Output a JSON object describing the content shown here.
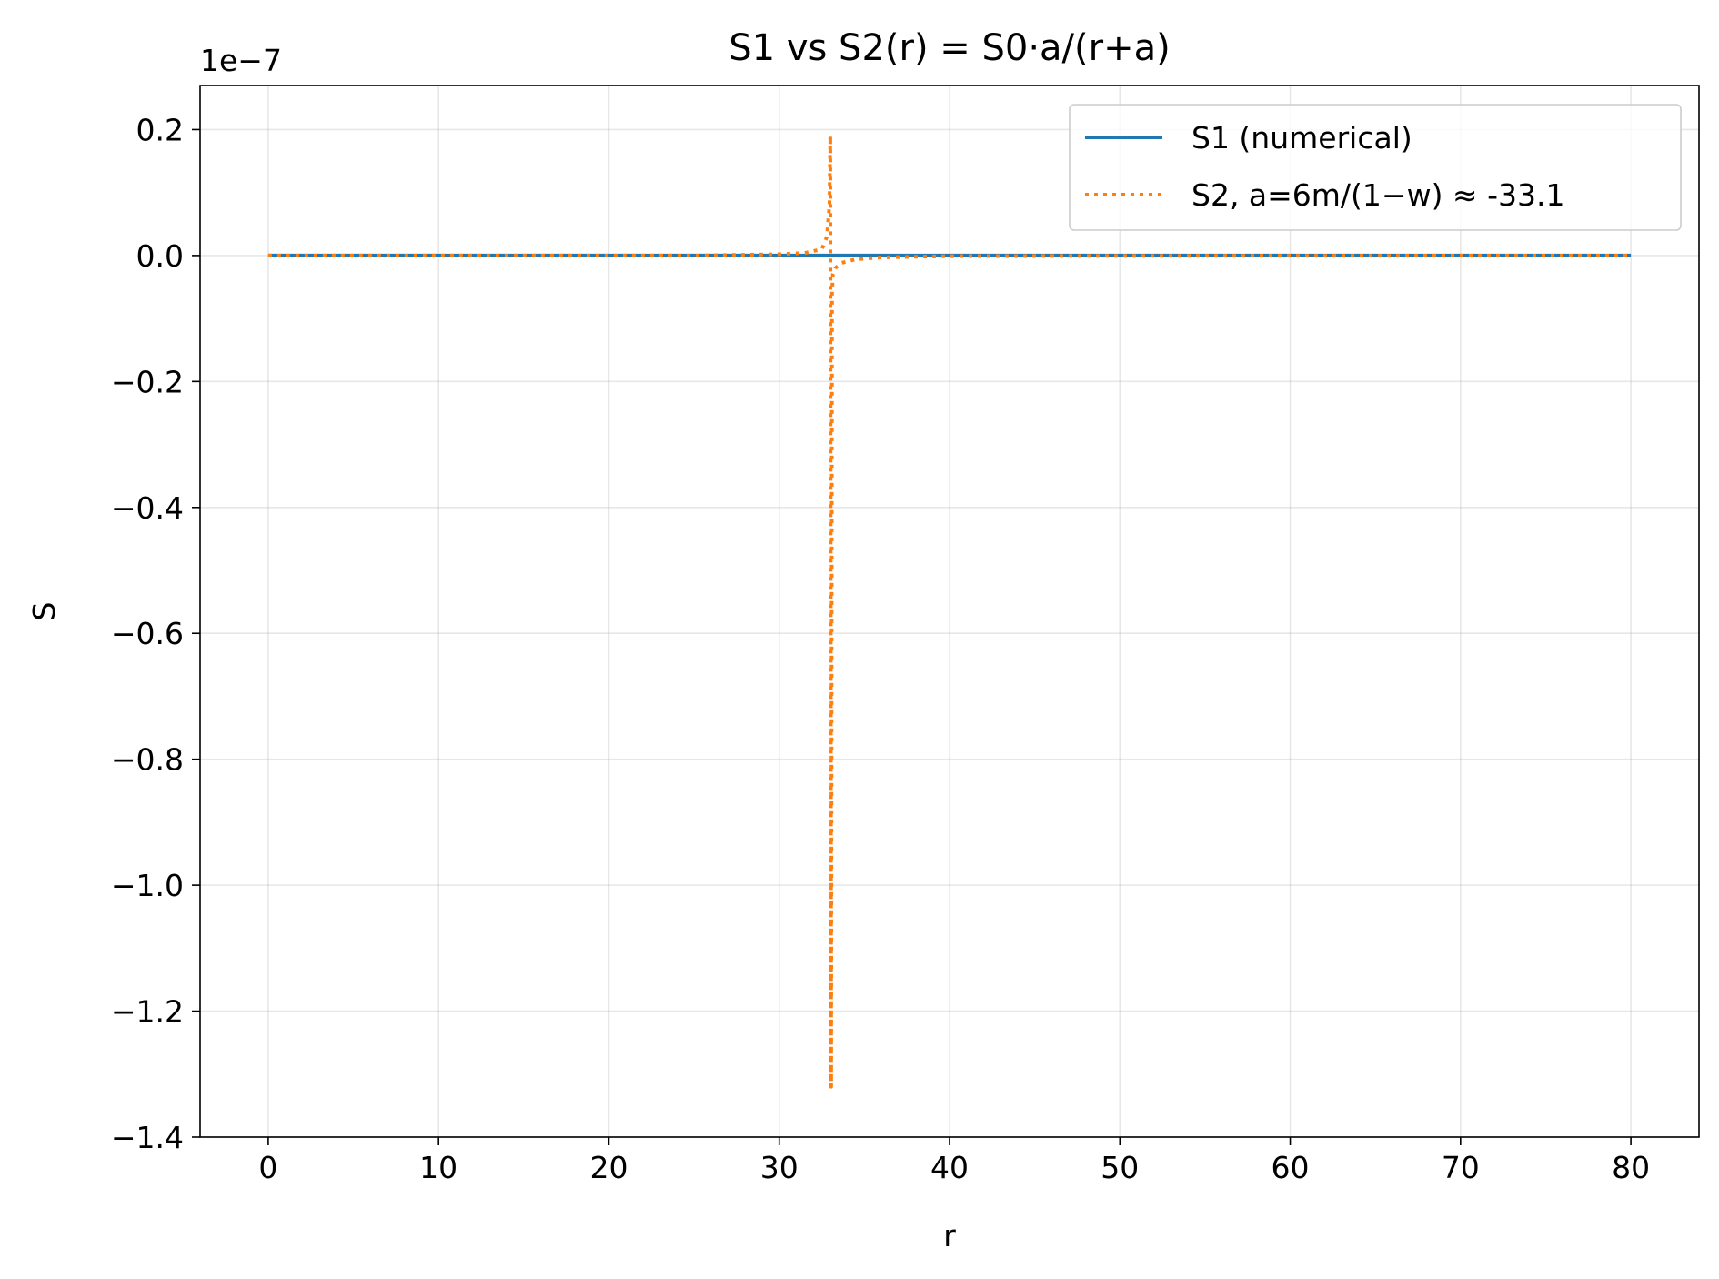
{
  "chart_data": {
    "type": "line",
    "title": "S1 vs S2(r) = S0·a/(r+a)",
    "xlabel": "r",
    "ylabel": "S",
    "y_offset_label": "1e−7",
    "xlim": [
      -4,
      84
    ],
    "ylim": [
      -1.4,
      0.27
    ],
    "y_scale_factor": 1e-07,
    "xticks": [
      0,
      10,
      20,
      30,
      40,
      50,
      60,
      70,
      80
    ],
    "xtick_labels": [
      "0",
      "10",
      "20",
      "30",
      "40",
      "50",
      "60",
      "70",
      "80"
    ],
    "yticks": [
      0.2,
      0.0,
      -0.2,
      -0.4,
      -0.6,
      -0.8,
      -1.0,
      -1.2,
      -1.4
    ],
    "ytick_labels": [
      "0.2",
      "0.0",
      "−0.2",
      "−0.4",
      "−0.6",
      "−0.8",
      "−1.0",
      "−1.2",
      "−1.4"
    ],
    "grid": true,
    "legend_position": "top-right",
    "series": [
      {
        "name": "S1 (numerical)",
        "color": "#1f77b4",
        "style": "solid",
        "x": [
          0,
          80
        ],
        "y": [
          0.0,
          0.0
        ]
      },
      {
        "name": "S2, a=6m/(1−w) ≈ -33.1",
        "color": "#ff7f0e",
        "style": "dotted",
        "x": [
          0,
          10,
          20,
          25,
          30,
          31.5,
          32.5,
          32.8,
          32.95,
          33.0,
          33.05,
          33.1,
          33.15,
          33.3,
          33.6,
          34.5,
          36,
          40,
          50,
          60,
          80
        ],
        "y": [
          0.0,
          0.0,
          0.0,
          0.0,
          0.002,
          0.004,
          0.01,
          0.03,
          0.08,
          0.19,
          -1.32,
          -0.06,
          -0.03,
          -0.02,
          -0.012,
          -0.006,
          -0.003,
          -0.001,
          -0.0005,
          -0.0003,
          -0.0001
        ]
      }
    ]
  }
}
